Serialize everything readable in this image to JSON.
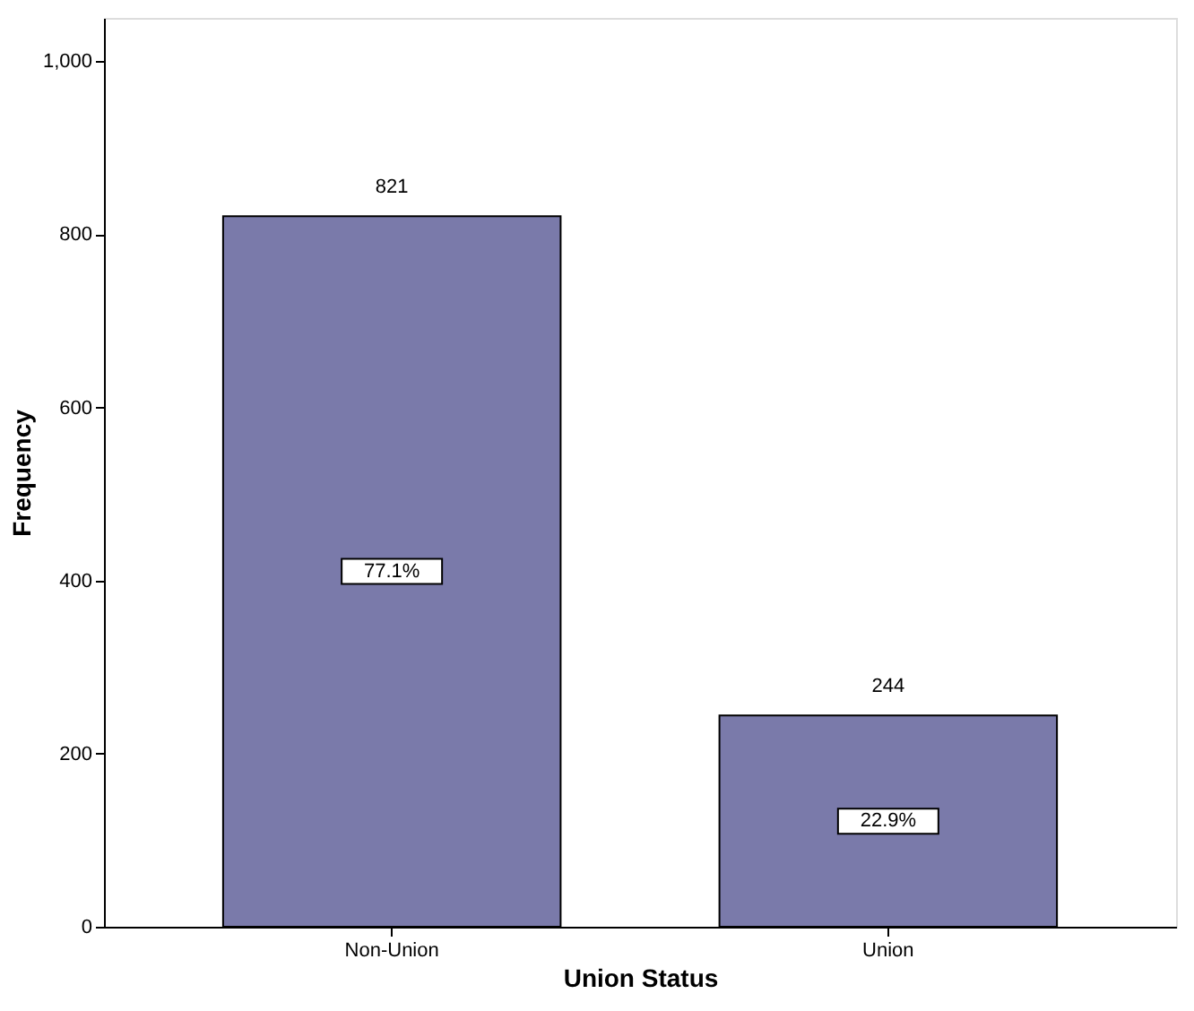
{
  "chart_data": {
    "type": "bar",
    "xlabel": "Union Status",
    "ylabel": "Frequency",
    "categories": [
      "Non-Union",
      "Union"
    ],
    "values": [
      821,
      244
    ],
    "color": "#7a7aaa",
    "ylim": [
      0,
      1050
    ],
    "yticks": [
      0,
      200,
      400,
      600,
      800,
      {
        "value": 1000,
        "label": "1,000"
      }
    ],
    "data_labels": true,
    "grid": false,
    "annotations": [
      "77.1%",
      "22.9%"
    ]
  }
}
